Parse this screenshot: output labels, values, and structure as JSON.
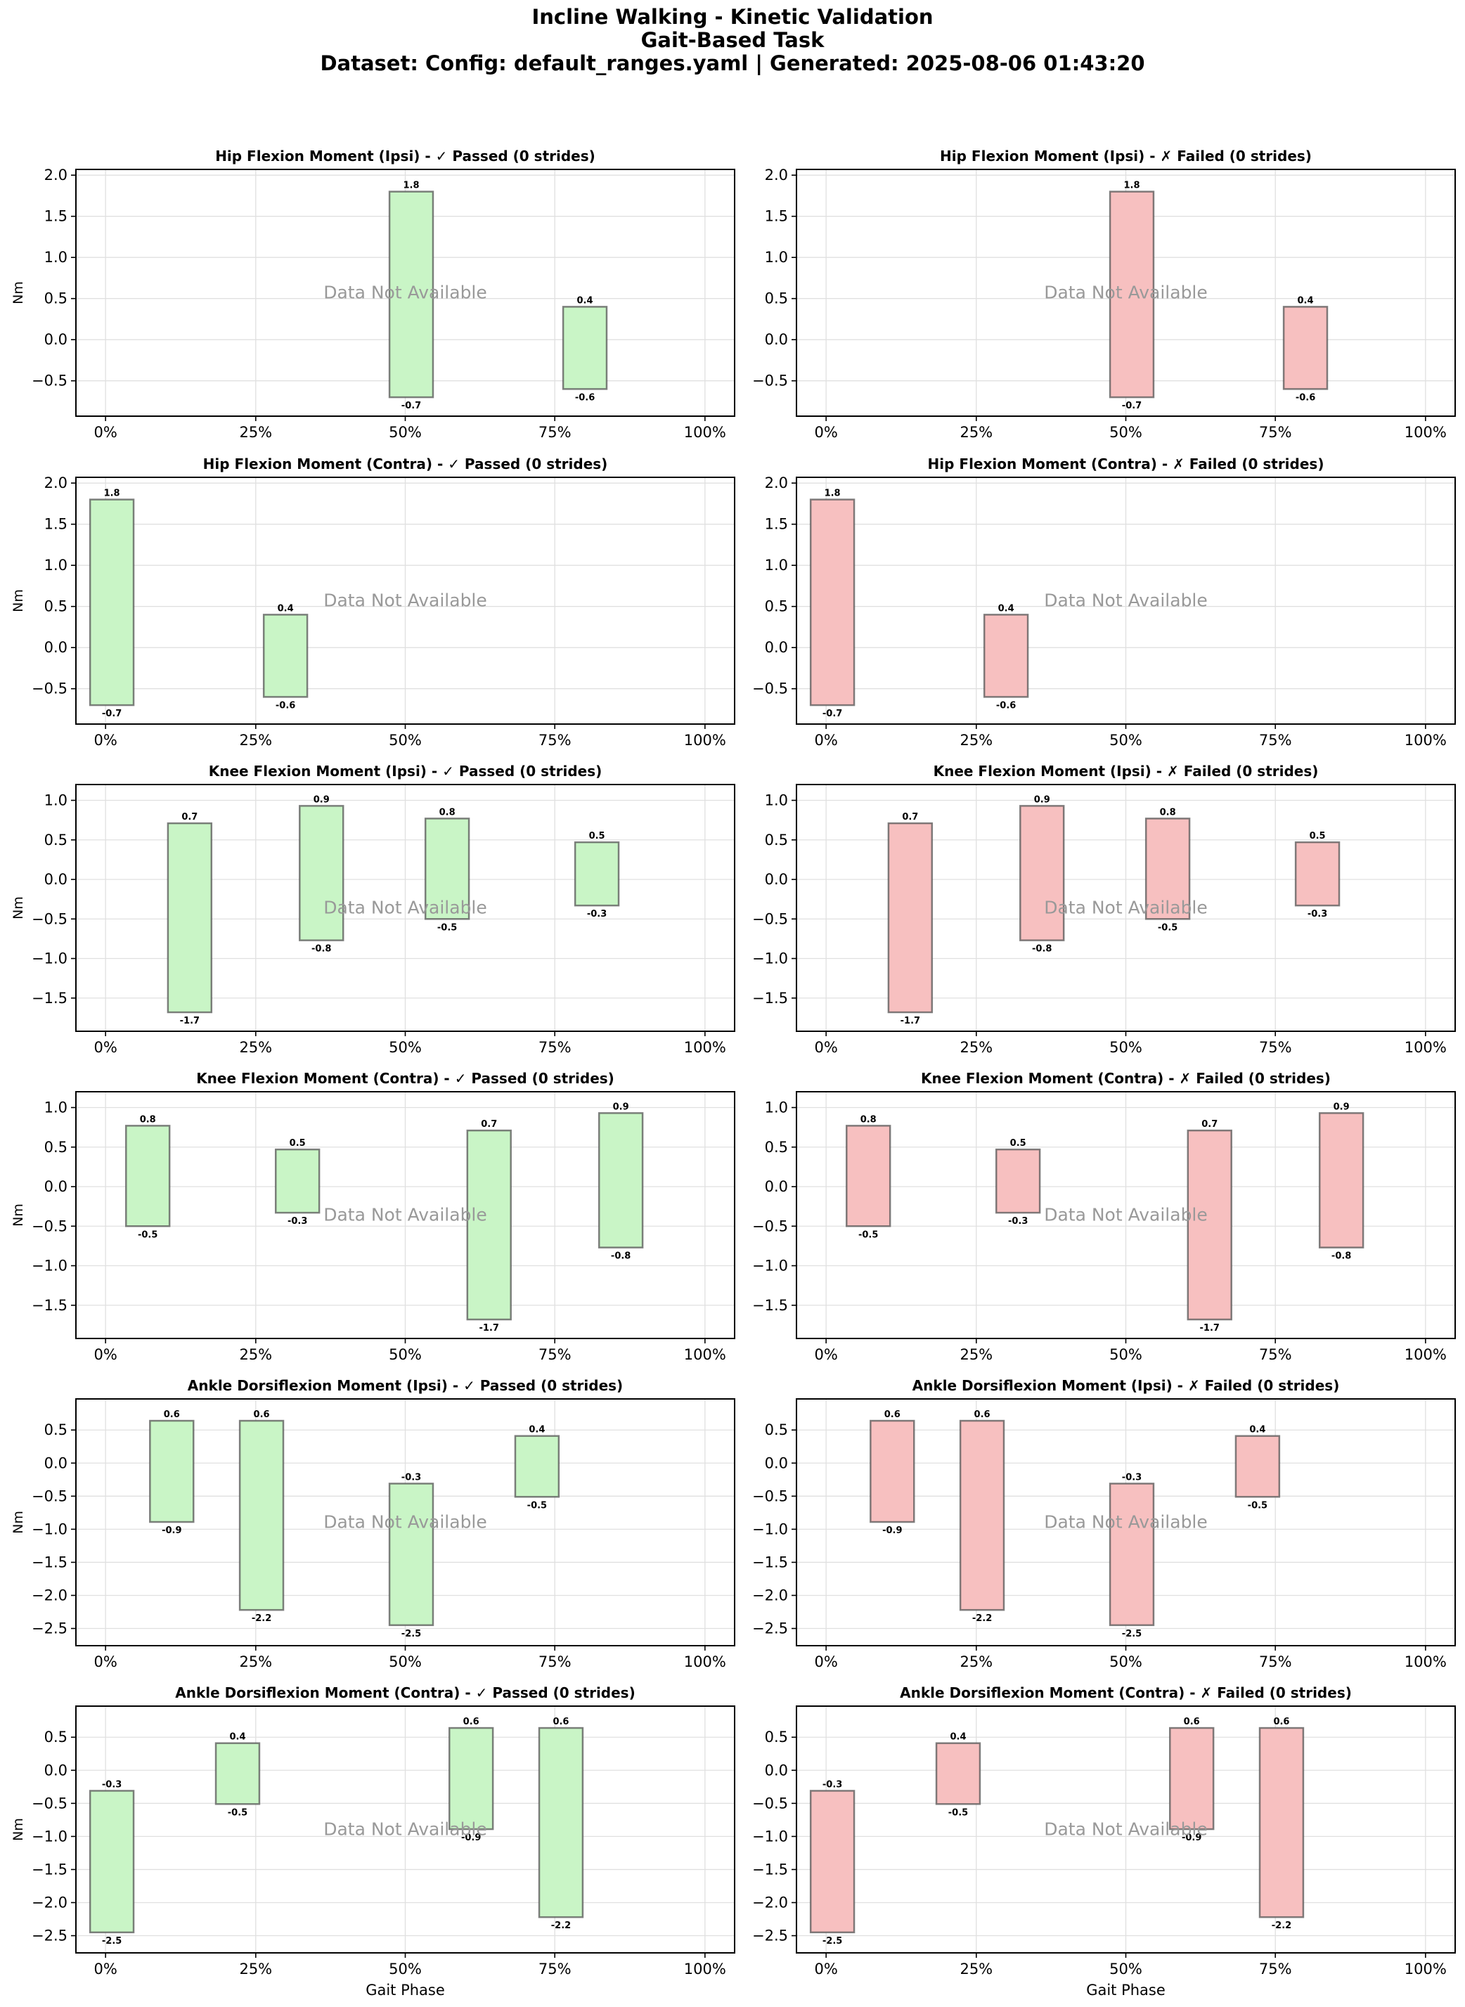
{
  "figure": {
    "title_lines": [
      "Incline Walking - Kinetic Validation",
      "Gait-Based Task",
      "Dataset: Config: default_ranges.yaml | Generated: 2025-08-06 01:43:20"
    ],
    "xlabel": "Gait Phase",
    "ylabel": "Nm",
    "placeholder_text": "Data Not Available",
    "colors": {
      "passed_fill": "#c9f5c6",
      "failed_fill": "#f7c0c0",
      "bar_edge": "#555555",
      "grid": "#e0e0e0",
      "placeholder": "#999999"
    }
  },
  "chart_data": [
    {
      "type": "bar",
      "title": "Hip Flexion Moment (Ipsi) - ✓ Passed (0 strides)",
      "status": "passed",
      "xlabel": "",
      "ylabel": "Nm",
      "xticks": [
        "0%",
        "25%",
        "50%",
        "75%",
        "100%"
      ],
      "xlim": [
        -5,
        105
      ],
      "ylim": [
        -0.93,
        2.07
      ],
      "yticks": [
        -0.5,
        0.0,
        0.5,
        1.0,
        1.5,
        2.0
      ],
      "yticklabels": [
        "−0.5",
        "0.0",
        "0.5",
        "1.0",
        "1.5",
        "2.0"
      ],
      "bars": [
        {
          "phase": 51,
          "min": -0.7,
          "max": 1.8,
          "min_label": "-0.7",
          "max_label": "1.8"
        },
        {
          "phase": 80,
          "min": -0.6,
          "max": 0.4,
          "min_label": "-0.6",
          "max_label": "0.4"
        }
      ]
    },
    {
      "type": "bar",
      "title": "Hip Flexion Moment (Ipsi) - ✗ Failed (0 strides)",
      "status": "failed",
      "xlabel": "",
      "ylabel": "",
      "xticks": [
        "0%",
        "25%",
        "50%",
        "75%",
        "100%"
      ],
      "xlim": [
        -5,
        105
      ],
      "ylim": [
        -0.93,
        2.07
      ],
      "yticks": [
        -0.5,
        0.0,
        0.5,
        1.0,
        1.5,
        2.0
      ],
      "yticklabels": [
        "−0.5",
        "0.0",
        "0.5",
        "1.0",
        "1.5",
        "2.0"
      ],
      "bars": [
        {
          "phase": 51,
          "min": -0.7,
          "max": 1.8,
          "min_label": "-0.7",
          "max_label": "1.8"
        },
        {
          "phase": 80,
          "min": -0.6,
          "max": 0.4,
          "min_label": "-0.6",
          "max_label": "0.4"
        }
      ]
    },
    {
      "type": "bar",
      "title": "Hip Flexion Moment (Contra) - ✓ Passed (0 strides)",
      "status": "passed",
      "xlabel": "",
      "ylabel": "Nm",
      "xticks": [
        "0%",
        "25%",
        "50%",
        "75%",
        "100%"
      ],
      "xlim": [
        -5,
        105
      ],
      "ylim": [
        -0.93,
        2.07
      ],
      "yticks": [
        -0.5,
        0.0,
        0.5,
        1.0,
        1.5,
        2.0
      ],
      "yticklabels": [
        "−0.5",
        "0.0",
        "0.5",
        "1.0",
        "1.5",
        "2.0"
      ],
      "bars": [
        {
          "phase": 1,
          "min": -0.7,
          "max": 1.8,
          "min_label": "-0.7",
          "max_label": "1.8"
        },
        {
          "phase": 30,
          "min": -0.6,
          "max": 0.4,
          "min_label": "-0.6",
          "max_label": "0.4"
        }
      ]
    },
    {
      "type": "bar",
      "title": "Hip Flexion Moment (Contra) - ✗ Failed (0 strides)",
      "status": "failed",
      "xlabel": "",
      "ylabel": "",
      "xticks": [
        "0%",
        "25%",
        "50%",
        "75%",
        "100%"
      ],
      "xlim": [
        -5,
        105
      ],
      "ylim": [
        -0.93,
        2.07
      ],
      "yticks": [
        -0.5,
        0.0,
        0.5,
        1.0,
        1.5,
        2.0
      ],
      "yticklabels": [
        "−0.5",
        "0.0",
        "0.5",
        "1.0",
        "1.5",
        "2.0"
      ],
      "bars": [
        {
          "phase": 1,
          "min": -0.7,
          "max": 1.8,
          "min_label": "-0.7",
          "max_label": "1.8"
        },
        {
          "phase": 30,
          "min": -0.6,
          "max": 0.4,
          "min_label": "-0.6",
          "max_label": "0.4"
        }
      ]
    },
    {
      "type": "bar",
      "title": "Knee Flexion Moment (Ipsi) - ✓ Passed (0 strides)",
      "status": "passed",
      "xlabel": "",
      "ylabel": "Nm",
      "xticks": [
        "0%",
        "25%",
        "50%",
        "75%",
        "100%"
      ],
      "xlim": [
        -5,
        105
      ],
      "ylim": [
        -1.92,
        1.2
      ],
      "yticks": [
        -1.5,
        -1.0,
        -0.5,
        0.0,
        0.5,
        1.0
      ],
      "yticklabels": [
        "−1.5",
        "−1.0",
        "−0.5",
        "0.0",
        "0.5",
        "1.0"
      ],
      "bars": [
        {
          "phase": 14,
          "min": -1.68,
          "max": 0.71,
          "min_label": "-1.7",
          "max_label": "0.7"
        },
        {
          "phase": 36,
          "min": -0.77,
          "max": 0.93,
          "min_label": "-0.8",
          "max_label": "0.9"
        },
        {
          "phase": 57,
          "min": -0.5,
          "max": 0.77,
          "min_label": "-0.5",
          "max_label": "0.8"
        },
        {
          "phase": 82,
          "min": -0.33,
          "max": 0.47,
          "min_label": "-0.3",
          "max_label": "0.5"
        }
      ]
    },
    {
      "type": "bar",
      "title": "Knee Flexion Moment (Ipsi) - ✗ Failed (0 strides)",
      "status": "failed",
      "xlabel": "",
      "ylabel": "",
      "xticks": [
        "0%",
        "25%",
        "50%",
        "75%",
        "100%"
      ],
      "xlim": [
        -5,
        105
      ],
      "ylim": [
        -1.92,
        1.2
      ],
      "yticks": [
        -1.5,
        -1.0,
        -0.5,
        0.0,
        0.5,
        1.0
      ],
      "yticklabels": [
        "−1.5",
        "−1.0",
        "−0.5",
        "0.0",
        "0.5",
        "1.0"
      ],
      "bars": [
        {
          "phase": 14,
          "min": -1.68,
          "max": 0.71,
          "min_label": "-1.7",
          "max_label": "0.7"
        },
        {
          "phase": 36,
          "min": -0.77,
          "max": 0.93,
          "min_label": "-0.8",
          "max_label": "0.9"
        },
        {
          "phase": 57,
          "min": -0.5,
          "max": 0.77,
          "min_label": "-0.5",
          "max_label": "0.8"
        },
        {
          "phase": 82,
          "min": -0.33,
          "max": 0.47,
          "min_label": "-0.3",
          "max_label": "0.5"
        }
      ]
    },
    {
      "type": "bar",
      "title": "Knee Flexion Moment (Contra) - ✓ Passed (0 strides)",
      "status": "passed",
      "xlabel": "",
      "ylabel": "Nm",
      "xticks": [
        "0%",
        "25%",
        "50%",
        "75%",
        "100%"
      ],
      "xlim": [
        -5,
        105
      ],
      "ylim": [
        -1.92,
        1.2
      ],
      "yticks": [
        -1.5,
        -1.0,
        -0.5,
        0.0,
        0.5,
        1.0
      ],
      "yticklabels": [
        "−1.5",
        "−1.0",
        "−0.5",
        "0.0",
        "0.5",
        "1.0"
      ],
      "bars": [
        {
          "phase": 7,
          "min": -0.5,
          "max": 0.77,
          "min_label": "-0.5",
          "max_label": "0.8"
        },
        {
          "phase": 32,
          "min": -0.33,
          "max": 0.47,
          "min_label": "-0.3",
          "max_label": "0.5"
        },
        {
          "phase": 64,
          "min": -1.68,
          "max": 0.71,
          "min_label": "-1.7",
          "max_label": "0.7"
        },
        {
          "phase": 86,
          "min": -0.77,
          "max": 0.93,
          "min_label": "-0.8",
          "max_label": "0.9"
        }
      ]
    },
    {
      "type": "bar",
      "title": "Knee Flexion Moment (Contra) - ✗ Failed (0 strides)",
      "status": "failed",
      "xlabel": "",
      "ylabel": "",
      "xticks": [
        "0%",
        "25%",
        "50%",
        "75%",
        "100%"
      ],
      "xlim": [
        -5,
        105
      ],
      "ylim": [
        -1.92,
        1.2
      ],
      "yticks": [
        -1.5,
        -1.0,
        -0.5,
        0.0,
        0.5,
        1.0
      ],
      "yticklabels": [
        "−1.5",
        "−1.0",
        "−0.5",
        "0.0",
        "0.5",
        "1.0"
      ],
      "bars": [
        {
          "phase": 7,
          "min": -0.5,
          "max": 0.77,
          "min_label": "-0.5",
          "max_label": "0.8"
        },
        {
          "phase": 32,
          "min": -0.33,
          "max": 0.47,
          "min_label": "-0.3",
          "max_label": "0.5"
        },
        {
          "phase": 64,
          "min": -1.68,
          "max": 0.71,
          "min_label": "-1.7",
          "max_label": "0.7"
        },
        {
          "phase": 86,
          "min": -0.77,
          "max": 0.93,
          "min_label": "-0.8",
          "max_label": "0.9"
        }
      ]
    },
    {
      "type": "bar",
      "title": "Ankle Dorsiflexion Moment (Ipsi) - ✓ Passed (0 strides)",
      "status": "passed",
      "xlabel": "",
      "ylabel": "Nm",
      "xticks": [
        "0%",
        "25%",
        "50%",
        "75%",
        "100%"
      ],
      "xlim": [
        -5,
        105
      ],
      "ylim": [
        -2.76,
        0.97
      ],
      "yticks": [
        -2.5,
        -2.0,
        -1.5,
        -1.0,
        -0.5,
        0.0,
        0.5
      ],
      "yticklabels": [
        "−2.5",
        "−2.0",
        "−1.5",
        "−1.0",
        "−0.5",
        "0.0",
        "0.5"
      ],
      "bars": [
        {
          "phase": 11,
          "min": -0.89,
          "max": 0.64,
          "min_label": "-0.9",
          "max_label": "0.6"
        },
        {
          "phase": 26,
          "min": -2.22,
          "max": 0.64,
          "min_label": "-2.2",
          "max_label": "0.6"
        },
        {
          "phase": 51,
          "min": -2.45,
          "max": -0.31,
          "min_label": "-2.5",
          "max_label": "-0.3"
        },
        {
          "phase": 72,
          "min": -0.51,
          "max": 0.41,
          "min_label": "-0.5",
          "max_label": "0.4"
        }
      ]
    },
    {
      "type": "bar",
      "title": "Ankle Dorsiflexion Moment (Ipsi) - ✗ Failed (0 strides)",
      "status": "failed",
      "xlabel": "",
      "ylabel": "",
      "xticks": [
        "0%",
        "25%",
        "50%",
        "75%",
        "100%"
      ],
      "xlim": [
        -5,
        105
      ],
      "ylim": [
        -2.76,
        0.97
      ],
      "yticks": [
        -2.5,
        -2.0,
        -1.5,
        -1.0,
        -0.5,
        0.0,
        0.5
      ],
      "yticklabels": [
        "−2.5",
        "−2.0",
        "−1.5",
        "−1.0",
        "−0.5",
        "0.0",
        "0.5"
      ],
      "bars": [
        {
          "phase": 11,
          "min": -0.89,
          "max": 0.64,
          "min_label": "-0.9",
          "max_label": "0.6"
        },
        {
          "phase": 26,
          "min": -2.22,
          "max": 0.64,
          "min_label": "-2.2",
          "max_label": "0.6"
        },
        {
          "phase": 51,
          "min": -2.45,
          "max": -0.31,
          "min_label": "-2.5",
          "max_label": "-0.3"
        },
        {
          "phase": 72,
          "min": -0.51,
          "max": 0.41,
          "min_label": "-0.5",
          "max_label": "0.4"
        }
      ]
    },
    {
      "type": "bar",
      "title": "Ankle Dorsiflexion Moment (Contra) - ✓ Passed (0 strides)",
      "status": "passed",
      "xlabel": "Gait Phase",
      "ylabel": "Nm",
      "xticks": [
        "0%",
        "25%",
        "50%",
        "75%",
        "100%"
      ],
      "xlim": [
        -5,
        105
      ],
      "ylim": [
        -2.76,
        0.97
      ],
      "yticks": [
        -2.5,
        -2.0,
        -1.5,
        -1.0,
        -0.5,
        0.0,
        0.5
      ],
      "yticklabels": [
        "−2.5",
        "−2.0",
        "−1.5",
        "−1.0",
        "−0.5",
        "0.0",
        "0.5"
      ],
      "bars": [
        {
          "phase": 1,
          "min": -2.45,
          "max": -0.31,
          "min_label": "-2.5",
          "max_label": "-0.3"
        },
        {
          "phase": 22,
          "min": -0.51,
          "max": 0.41,
          "min_label": "-0.5",
          "max_label": "0.4"
        },
        {
          "phase": 61,
          "min": -0.89,
          "max": 0.64,
          "min_label": "-0.9",
          "max_label": "0.6"
        },
        {
          "phase": 76,
          "min": -2.22,
          "max": 0.64,
          "min_label": "-2.2",
          "max_label": "0.6"
        }
      ]
    },
    {
      "type": "bar",
      "title": "Ankle Dorsiflexion Moment (Contra) - ✗ Failed (0 strides)",
      "status": "failed",
      "xlabel": "Gait Phase",
      "ylabel": "",
      "xticks": [
        "0%",
        "25%",
        "50%",
        "75%",
        "100%"
      ],
      "xlim": [
        -5,
        105
      ],
      "ylim": [
        -2.76,
        0.97
      ],
      "yticks": [
        -2.5,
        -2.0,
        -1.5,
        -1.0,
        -0.5,
        0.0,
        0.5
      ],
      "yticklabels": [
        "−2.5",
        "−2.0",
        "−1.5",
        "−1.0",
        "−0.5",
        "0.0",
        "0.5"
      ],
      "bars": [
        {
          "phase": 1,
          "min": -2.45,
          "max": -0.31,
          "min_label": "-2.5",
          "max_label": "-0.3"
        },
        {
          "phase": 22,
          "min": -0.51,
          "max": 0.41,
          "min_label": "-0.5",
          "max_label": "0.4"
        },
        {
          "phase": 61,
          "min": -0.89,
          "max": 0.64,
          "min_label": "-0.9",
          "max_label": "0.6"
        },
        {
          "phase": 76,
          "min": -2.22,
          "max": 0.64,
          "min_label": "-2.2",
          "max_label": "0.6"
        }
      ]
    }
  ]
}
